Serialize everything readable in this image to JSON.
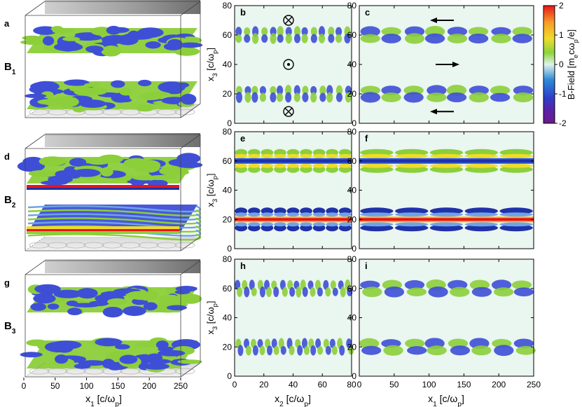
{
  "chart_data": [
    {
      "type": "3d-isosurface",
      "panels": [
        "a",
        "d",
        "g"
      ],
      "rows": [
        {
          "panel": "a",
          "label": "B",
          "sub": "1"
        },
        {
          "panel": "d",
          "label": "B",
          "sub": "2"
        },
        {
          "panel": "g",
          "label": "B",
          "sub": "3"
        }
      ],
      "x_axis": {
        "symbol": "x",
        "sub": "1",
        "unit": "[c/ω",
        "unit_sub": "p",
        "unit_end": "]",
        "range": [
          0,
          250
        ],
        "ticks": [
          0,
          50,
          100,
          150,
          200,
          250
        ]
      }
    },
    {
      "type": "heatmap",
      "panels": [
        {
          "id": "b",
          "plane": "x2-x3",
          "row": 1
        },
        {
          "id": "c",
          "plane": "x1-x3",
          "row": 1
        },
        {
          "id": "e",
          "plane": "x2-x3",
          "row": 2
        },
        {
          "id": "f",
          "plane": "x1-x3",
          "row": 2
        },
        {
          "id": "h",
          "plane": "x2-x3",
          "row": 3
        },
        {
          "id": "i",
          "plane": "x1-x3",
          "row": 3
        }
      ],
      "y_axis": {
        "symbol": "x",
        "sub": "3",
        "unit": "[c/ω",
        "unit_sub": "p",
        "unit_end": "]",
        "range": [
          0,
          80
        ],
        "ticks": [
          0,
          20,
          40,
          60,
          80
        ]
      },
      "x_axis_mid": {
        "symbol": "x",
        "sub": "2",
        "unit": "[c/ω",
        "unit_sub": "p",
        "unit_end": "]",
        "range": [
          0,
          80
        ],
        "ticks": [
          0,
          20,
          40,
          60,
          80
        ]
      },
      "x_axis_right": {
        "symbol": "x",
        "sub": "1",
        "unit": "[c/ω",
        "unit_sub": "p",
        "unit_end": "]",
        "range": [
          0,
          250
        ],
        "ticks": [
          0,
          50,
          100,
          150,
          200,
          250
        ]
      },
      "flow_markers": {
        "panel_b": [
          {
            "symbol": "into-page",
            "x3": 70
          },
          {
            "symbol": "out-of-page",
            "x3": 40
          },
          {
            "symbol": "into-page",
            "x3": 8
          }
        ],
        "panel_c": [
          {
            "direction": "left",
            "x3": 70
          },
          {
            "direction": "right",
            "x3": 40
          },
          {
            "direction": "left",
            "x3": 8
          }
        ]
      },
      "colorbar": {
        "title": "B-Field",
        "unit": "[m",
        "unit_tail": "cω",
        "unit_end": "/e]",
        "range": [
          -2,
          2
        ],
        "ticks": [
          2,
          1,
          0,
          -1,
          -2
        ],
        "colors": [
          "#e8151a",
          "#f79a2a",
          "#f0dc2a",
          "#8cd43c",
          "#dff3ea",
          "#2e57d8",
          "#5d20a6",
          "#6a1b8a"
        ]
      },
      "layers_x3": [
        20,
        60
      ]
    }
  ]
}
